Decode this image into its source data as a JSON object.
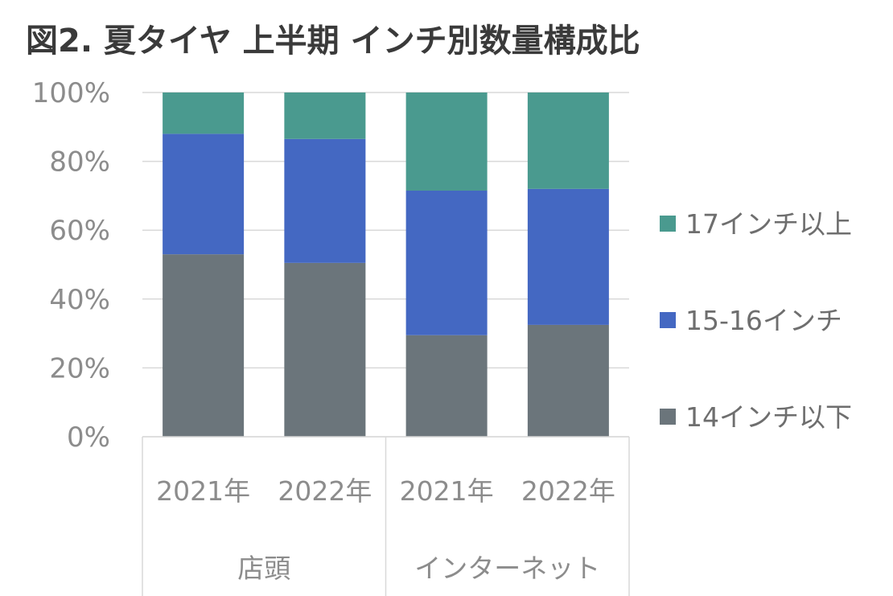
{
  "chart_data": {
    "type": "bar",
    "stacked": true,
    "percent": true,
    "title": "図2. 夏タイヤ 上半期 インチ別数量構成比",
    "categories": [
      "2021年",
      "2022年",
      "2021年",
      "2022年"
    ],
    "groups": [
      {
        "label": "店頭",
        "categories": [
          0,
          1
        ]
      },
      {
        "label": "インターネット",
        "categories": [
          2,
          3
        ]
      }
    ],
    "series": [
      {
        "name": "14インチ以下",
        "color": "#6b757b",
        "values": [
          53,
          50.5,
          29.5,
          32.5
        ]
      },
      {
        "name": "15-16インチ",
        "color": "#4468c2",
        "values": [
          35,
          36,
          42,
          39.5
        ]
      },
      {
        "name": "17インチ以上",
        "color": "#4a9a8f",
        "values": [
          12,
          13.5,
          28.5,
          28
        ]
      }
    ],
    "yticks": [
      "0%",
      "20%",
      "40%",
      "60%",
      "80%",
      "100%"
    ],
    "ylim": [
      0,
      100
    ],
    "grid": true,
    "legend_position": "right"
  }
}
